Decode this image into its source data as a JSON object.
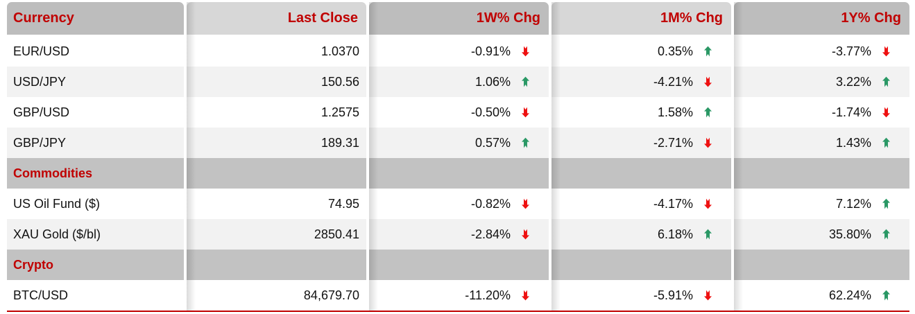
{
  "table": {
    "columns": [
      {
        "id": "currency",
        "label": "Currency"
      },
      {
        "id": "last_close",
        "label": "Last Close"
      },
      {
        "id": "chg_1w",
        "label": "1W% Chg"
      },
      {
        "id": "chg_1m",
        "label": "1M% Chg"
      },
      {
        "id": "chg_1y",
        "label": "1Y% Chg"
      }
    ],
    "rows": [
      {
        "type": "data",
        "name": "EUR/USD",
        "last_close": "1.0370",
        "chg_1w": {
          "value": "-0.91%",
          "dir": "down"
        },
        "chg_1m": {
          "value": "0.35%",
          "dir": "up"
        },
        "chg_1y": {
          "value": "-3.77%",
          "dir": "down"
        }
      },
      {
        "type": "data",
        "name": "USD/JPY",
        "last_close": "150.56",
        "chg_1w": {
          "value": "1.06%",
          "dir": "up"
        },
        "chg_1m": {
          "value": "-4.21%",
          "dir": "down"
        },
        "chg_1y": {
          "value": "3.22%",
          "dir": "up"
        }
      },
      {
        "type": "data",
        "name": "GBP/USD",
        "last_close": "1.2575",
        "chg_1w": {
          "value": "-0.50%",
          "dir": "down"
        },
        "chg_1m": {
          "value": "1.58%",
          "dir": "up"
        },
        "chg_1y": {
          "value": "-1.74%",
          "dir": "down"
        }
      },
      {
        "type": "data",
        "name": "GBP/JPY",
        "last_close": "189.31",
        "chg_1w": {
          "value": "0.57%",
          "dir": "up"
        },
        "chg_1m": {
          "value": "-2.71%",
          "dir": "down"
        },
        "chg_1y": {
          "value": "1.43%",
          "dir": "up"
        }
      },
      {
        "type": "section",
        "name": "Commodities"
      },
      {
        "type": "data",
        "name": "US Oil Fund ($)",
        "last_close": "74.95",
        "chg_1w": {
          "value": "-0.82%",
          "dir": "down"
        },
        "chg_1m": {
          "value": "-4.17%",
          "dir": "down"
        },
        "chg_1y": {
          "value": "7.12%",
          "dir": "up"
        }
      },
      {
        "type": "data",
        "name": "XAU Gold ($/bl)",
        "last_close": "2850.41",
        "chg_1w": {
          "value": "-2.84%",
          "dir": "down"
        },
        "chg_1m": {
          "value": "6.18%",
          "dir": "up"
        },
        "chg_1y": {
          "value": "35.80%",
          "dir": "up"
        }
      },
      {
        "type": "section",
        "name": "Crypto"
      },
      {
        "type": "data",
        "name": "BTC/USD",
        "last_close": "84,679.70",
        "chg_1w": {
          "value": "-11.20%",
          "dir": "down"
        },
        "chg_1m": {
          "value": "-5.91%",
          "dir": "down"
        },
        "chg_1y": {
          "value": "62.24%",
          "dir": "up"
        }
      }
    ],
    "colors": {
      "header_red": "#C00000",
      "col_dark_grey": "#BDBDBD",
      "col_light_grey": "#D7D7D7",
      "section_grey": "#C2C2C2",
      "row_alt_grey": "#F2F2F2",
      "up_green": "#2A9865",
      "down_red": "#EE1111",
      "bottom_line": "#C00000",
      "text_black": "#111111"
    }
  },
  "chart_data": {
    "type": "table",
    "columns": [
      "Currency",
      "Last Close",
      "1W% Chg",
      "1M% Chg",
      "1Y% Chg"
    ],
    "rows": [
      {
        "section": "Currency",
        "name": "EUR/USD",
        "last_close": 1.037,
        "chg_1w_pct": -0.91,
        "chg_1m_pct": 0.35,
        "chg_1y_pct": -3.77
      },
      {
        "section": "Currency",
        "name": "USD/JPY",
        "last_close": 150.56,
        "chg_1w_pct": 1.06,
        "chg_1m_pct": -4.21,
        "chg_1y_pct": 3.22
      },
      {
        "section": "Currency",
        "name": "GBP/USD",
        "last_close": 1.2575,
        "chg_1w_pct": -0.5,
        "chg_1m_pct": 1.58,
        "chg_1y_pct": -1.74
      },
      {
        "section": "Currency",
        "name": "GBP/JPY",
        "last_close": 189.31,
        "chg_1w_pct": 0.57,
        "chg_1m_pct": -2.71,
        "chg_1y_pct": 1.43
      },
      {
        "section": "Commodities",
        "name": "US Oil Fund ($)",
        "last_close": 74.95,
        "chg_1w_pct": -0.82,
        "chg_1m_pct": -4.17,
        "chg_1y_pct": 7.12
      },
      {
        "section": "Commodities",
        "name": "XAU Gold ($/bl)",
        "last_close": 2850.41,
        "chg_1w_pct": -2.84,
        "chg_1m_pct": 6.18,
        "chg_1y_pct": 35.8
      },
      {
        "section": "Crypto",
        "name": "BTC/USD",
        "last_close": 84679.7,
        "chg_1w_pct": -11.2,
        "chg_1m_pct": -5.91,
        "chg_1y_pct": 62.24
      }
    ]
  }
}
